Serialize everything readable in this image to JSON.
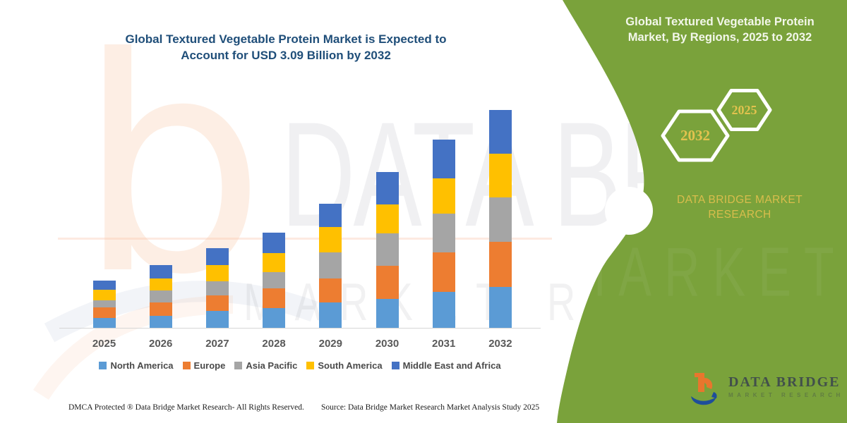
{
  "title": {
    "line1": "Global Textured Vegetable Protein Market is Expected to",
    "line2": "Account for USD 3.09 Billion by 2032"
  },
  "chart_data": {
    "type": "bar",
    "stacked": true,
    "unit": "USD Billion",
    "title": "Global Textured Vegetable Protein Market is Expected to Account for USD 3.09 Billion by 2032",
    "categories": [
      "2025",
      "2026",
      "2027",
      "2028",
      "2029",
      "2030",
      "2031",
      "2032"
    ],
    "series": [
      {
        "name": "North America",
        "color": "#5B9BD5",
        "values": [
          0.14,
          0.17,
          0.24,
          0.28,
          0.36,
          0.41,
          0.51,
          0.58
        ]
      },
      {
        "name": "Europe",
        "color": "#ED7D31",
        "values": [
          0.15,
          0.19,
          0.22,
          0.28,
          0.34,
          0.47,
          0.56,
          0.64
        ]
      },
      {
        "name": "Asia Pacific",
        "color": "#A5A5A5",
        "values": [
          0.1,
          0.17,
          0.2,
          0.23,
          0.37,
          0.46,
          0.55,
          0.63
        ]
      },
      {
        "name": "South America",
        "color": "#FFC000",
        "values": [
          0.15,
          0.17,
          0.23,
          0.27,
          0.36,
          0.41,
          0.5,
          0.62
        ]
      },
      {
        "name": "Middle East and Africa",
        "color": "#4472C4",
        "values": [
          0.13,
          0.19,
          0.24,
          0.29,
          0.33,
          0.46,
          0.55,
          0.62
        ]
      }
    ],
    "totals": [
      0.67,
      0.89,
      1.13,
      1.35,
      1.76,
      2.21,
      2.67,
      3.09
    ],
    "ylim": [
      0,
      3.2
    ],
    "gridlines": false,
    "y_axis_shown": false,
    "legend_position": "bottom",
    "value_labels": false
  },
  "panel": {
    "heading": "Global Textured Vegetable Protein Market, By Regions, 2025 to 2032",
    "hexagons": [
      {
        "label": "2032"
      },
      {
        "label": "2025"
      }
    ],
    "brand": "DATA BRIDGE MARKET RESEARCH",
    "bg_color": "#7AA23B",
    "accent_color": "#D9BD4C"
  },
  "watermark": {
    "letter": "b",
    "line1": "DATA BRIDGE",
    "line2": "MARKET RESEARCH"
  },
  "logo": {
    "title": "DATA BRIDGE",
    "subtitle": "MARKET RESEARCH"
  },
  "footer": {
    "left": "DMCA Protected ® Data Bridge Market Research-  All Rights Reserved.",
    "source": "Source: Data Bridge Market Research  Market Analysis Study 2025"
  },
  "colors": {
    "title_text": "#1F4E79",
    "axis_label": "#595959",
    "legend_text": "#4A4A4A"
  }
}
